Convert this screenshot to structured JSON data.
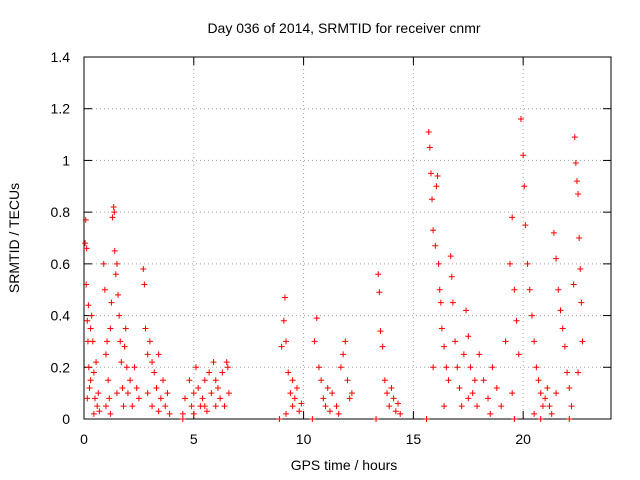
{
  "chart_data": {
    "type": "scatter",
    "title": "Day 036 of 2014, SRMTID for receiver cnmr",
    "xlabel": "GPS time / hours",
    "ylabel": "SRMTID / TECUs",
    "xlim": [
      0,
      24
    ],
    "ylim": [
      0,
      1.4
    ],
    "xticks": [
      0,
      5,
      10,
      15,
      20
    ],
    "xtick_labels": [
      "0",
      "5",
      "10",
      "15",
      "20"
    ],
    "yticks": [
      0,
      0.2,
      0.4,
      0.6,
      0.8,
      1.0,
      1.2,
      1.4
    ],
    "ytick_labels": [
      "0",
      "0.2",
      "0.4",
      "0.6",
      "0.8",
      "1",
      "1.2",
      "1.4"
    ],
    "grid": true,
    "marker": "plus",
    "marker_color": "#ff0000",
    "series": [
      {
        "name": "SRMTID",
        "points": [
          [
            0.05,
            0.68
          ],
          [
            0.08,
            0.77
          ],
          [
            0.1,
            0.52
          ],
          [
            0.12,
            0.66
          ],
          [
            0.15,
            0.38
          ],
          [
            0.18,
            0.3
          ],
          [
            0.2,
            0.44
          ],
          [
            0.22,
            0.2
          ],
          [
            0.25,
            0.12
          ],
          [
            0.3,
            0.35
          ],
          [
            0.35,
            0.4
          ],
          [
            0.4,
            0.3
          ],
          [
            0.45,
            0.18
          ],
          [
            0.5,
            0.08
          ],
          [
            0.55,
            0.22
          ],
          [
            0.6,
            0.05
          ],
          [
            0.65,
            0.1
          ],
          [
            0.7,
            0.03
          ],
          [
            0.15,
            0.08
          ],
          [
            0.3,
            0.15
          ],
          [
            0.45,
            0.02
          ],
          [
            0.9,
            0.6
          ],
          [
            0.95,
            0.5
          ],
          [
            1.0,
            0.25
          ],
          [
            1.05,
            0.3
          ],
          [
            1.1,
            0.15
          ],
          [
            1.15,
            0.08
          ],
          [
            1.2,
            0.35
          ],
          [
            1.25,
            0.45
          ],
          [
            1.3,
            0.78
          ],
          [
            1.35,
            0.82
          ],
          [
            1.38,
            0.8
          ],
          [
            1.4,
            0.65
          ],
          [
            1.45,
            0.56
          ],
          [
            1.5,
            0.6
          ],
          [
            1.55,
            0.48
          ],
          [
            1.6,
            0.4
          ],
          [
            1.65,
            0.3
          ],
          [
            1.7,
            0.22
          ],
          [
            1.75,
            0.12
          ],
          [
            1.8,
            0.05
          ],
          [
            1.85,
            0.28
          ],
          [
            1.9,
            0.35
          ],
          [
            1.95,
            0.2
          ],
          [
            2.0,
            0.1
          ],
          [
            2.1,
            0.15
          ],
          [
            2.2,
            0.05
          ],
          [
            2.3,
            0.2
          ],
          [
            2.4,
            0.12
          ],
          [
            2.5,
            0.08
          ],
          [
            1.0,
            0.05
          ],
          [
            1.2,
            0.02
          ],
          [
            1.5,
            0.1
          ],
          [
            2.7,
            0.58
          ],
          [
            2.75,
            0.52
          ],
          [
            2.8,
            0.35
          ],
          [
            2.9,
            0.25
          ],
          [
            3.0,
            0.3
          ],
          [
            3.1,
            0.22
          ],
          [
            3.2,
            0.18
          ],
          [
            3.3,
            0.12
          ],
          [
            3.4,
            0.25
          ],
          [
            3.5,
            0.08
          ],
          [
            3.6,
            0.15
          ],
          [
            3.7,
            0.05
          ],
          [
            3.8,
            0.1
          ],
          [
            3.9,
            0.02
          ],
          [
            2.9,
            0.1
          ],
          [
            3.1,
            0.05
          ],
          [
            3.4,
            0.03
          ],
          [
            4.5,
            0.02
          ],
          [
            4.6,
            0.08
          ],
          [
            4.8,
            0.15
          ],
          [
            4.9,
            0.05
          ],
          [
            5.0,
            0.1
          ],
          [
            5.1,
            0.2
          ],
          [
            5.2,
            0.12
          ],
          [
            5.3,
            0.05
          ],
          [
            5.4,
            0.08
          ],
          [
            5.5,
            0.15
          ],
          [
            5.6,
            0.03
          ],
          [
            5.7,
            0.18
          ],
          [
            5.8,
            0.1
          ],
          [
            5.9,
            0.22
          ],
          [
            6.0,
            0.05
          ],
          [
            6.1,
            0.12
          ],
          [
            6.2,
            0.08
          ],
          [
            6.3,
            0.18
          ],
          [
            6.4,
            0.05
          ],
          [
            6.5,
            0.22
          ],
          [
            6.55,
            0.2
          ],
          [
            6.6,
            0.1
          ],
          [
            5.0,
            0.02
          ],
          [
            5.5,
            0.05
          ],
          [
            6.0,
            0.15
          ],
          [
            9.0,
            0.28
          ],
          [
            9.1,
            0.38
          ],
          [
            9.15,
            0.47
          ],
          [
            9.2,
            0.3
          ],
          [
            9.3,
            0.18
          ],
          [
            9.4,
            0.1
          ],
          [
            9.5,
            0.05
          ],
          [
            9.6,
            0.08
          ],
          [
            9.7,
            0.12
          ],
          [
            9.8,
            0.03
          ],
          [
            9.9,
            0.06
          ],
          [
            9.2,
            0.02
          ],
          [
            9.5,
            0.15
          ],
          [
            10.5,
            0.3
          ],
          [
            10.6,
            0.39
          ],
          [
            10.7,
            0.2
          ],
          [
            10.8,
            0.15
          ],
          [
            10.9,
            0.08
          ],
          [
            11.0,
            0.05
          ],
          [
            11.1,
            0.12
          ],
          [
            11.2,
            0.03
          ],
          [
            11.3,
            0.1
          ],
          [
            11.5,
            0.05
          ],
          [
            11.7,
            0.2
          ],
          [
            11.8,
            0.25
          ],
          [
            11.9,
            0.3
          ],
          [
            12.0,
            0.15
          ],
          [
            12.1,
            0.08
          ],
          [
            12.2,
            0.1
          ],
          [
            11.6,
            0.02
          ],
          [
            13.4,
            0.56
          ],
          [
            13.45,
            0.49
          ],
          [
            13.5,
            0.34
          ],
          [
            13.6,
            0.28
          ],
          [
            13.7,
            0.15
          ],
          [
            13.8,
            0.1
          ],
          [
            13.9,
            0.05
          ],
          [
            14.0,
            0.12
          ],
          [
            14.1,
            0.08
          ],
          [
            14.2,
            0.03
          ],
          [
            14.3,
            0.06
          ],
          [
            14.4,
            0.02
          ],
          [
            15.7,
            1.11
          ],
          [
            15.75,
            1.05
          ],
          [
            15.8,
            0.95
          ],
          [
            15.85,
            0.85
          ],
          [
            15.9,
            0.73
          ],
          [
            16.0,
            0.67
          ],
          [
            16.05,
            0.9
          ],
          [
            16.1,
            0.94
          ],
          [
            16.15,
            0.6
          ],
          [
            16.2,
            0.5
          ],
          [
            16.25,
            0.45
          ],
          [
            16.3,
            0.35
          ],
          [
            16.4,
            0.28
          ],
          [
            16.5,
            0.2
          ],
          [
            16.6,
            0.15
          ],
          [
            16.7,
            0.63
          ],
          [
            16.75,
            0.55
          ],
          [
            16.8,
            0.45
          ],
          [
            16.9,
            0.3
          ],
          [
            17.0,
            0.2
          ],
          [
            17.1,
            0.12
          ],
          [
            17.2,
            0.05
          ],
          [
            17.3,
            0.25
          ],
          [
            17.4,
            0.42
          ],
          [
            17.5,
            0.32
          ],
          [
            17.6,
            0.2
          ],
          [
            17.7,
            0.1
          ],
          [
            17.8,
            0.15
          ],
          [
            17.9,
            0.05
          ],
          [
            18.0,
            0.25
          ],
          [
            18.2,
            0.15
          ],
          [
            18.4,
            0.08
          ],
          [
            18.6,
            0.2
          ],
          [
            18.8,
            0.12
          ],
          [
            19.0,
            0.05
          ],
          [
            19.2,
            0.3
          ],
          [
            19.4,
            0.6
          ],
          [
            19.5,
            0.78
          ],
          [
            19.6,
            0.5
          ],
          [
            19.7,
            0.38
          ],
          [
            19.8,
            0.25
          ],
          [
            19.9,
            1.16
          ],
          [
            20.0,
            1.02
          ],
          [
            20.05,
            0.9
          ],
          [
            20.1,
            0.75
          ],
          [
            20.2,
            0.6
          ],
          [
            20.3,
            0.5
          ],
          [
            20.4,
            0.4
          ],
          [
            20.5,
            0.3
          ],
          [
            20.6,
            0.2
          ],
          [
            20.7,
            0.15
          ],
          [
            20.8,
            0.1
          ],
          [
            20.9,
            0.05
          ],
          [
            21.0,
            0.08
          ],
          [
            21.1,
            0.12
          ],
          [
            21.2,
            0.05
          ],
          [
            21.3,
            0.02
          ],
          [
            21.4,
            0.72
          ],
          [
            21.5,
            0.62
          ],
          [
            21.6,
            0.5
          ],
          [
            21.7,
            0.42
          ],
          [
            21.8,
            0.35
          ],
          [
            21.9,
            0.28
          ],
          [
            22.0,
            0.18
          ],
          [
            22.1,
            0.12
          ],
          [
            22.2,
            0.05
          ],
          [
            22.3,
            0.52
          ],
          [
            22.35,
            1.09
          ],
          [
            22.4,
            0.99
          ],
          [
            22.45,
            0.92
          ],
          [
            22.5,
            0.87
          ],
          [
            22.55,
            0.7
          ],
          [
            22.6,
            0.58
          ],
          [
            22.65,
            0.45
          ],
          [
            22.7,
            0.3
          ],
          [
            15.9,
            0.2
          ],
          [
            16.4,
            0.05
          ],
          [
            17.5,
            0.08
          ],
          [
            18.5,
            0.02
          ],
          [
            19.5,
            0.1
          ],
          [
            20.5,
            0.02
          ],
          [
            21.5,
            0.1
          ],
          [
            22.5,
            0.18
          ],
          [
            15.6,
            0.0
          ],
          [
            19.6,
            0.0
          ],
          [
            20.8,
            0.0
          ],
          [
            22.1,
            0.0
          ],
          [
            4.5,
            0.0
          ],
          [
            8.9,
            0.0
          ],
          [
            13.3,
            0.0
          ],
          [
            10.4,
            0.0
          ]
        ]
      }
    ]
  }
}
